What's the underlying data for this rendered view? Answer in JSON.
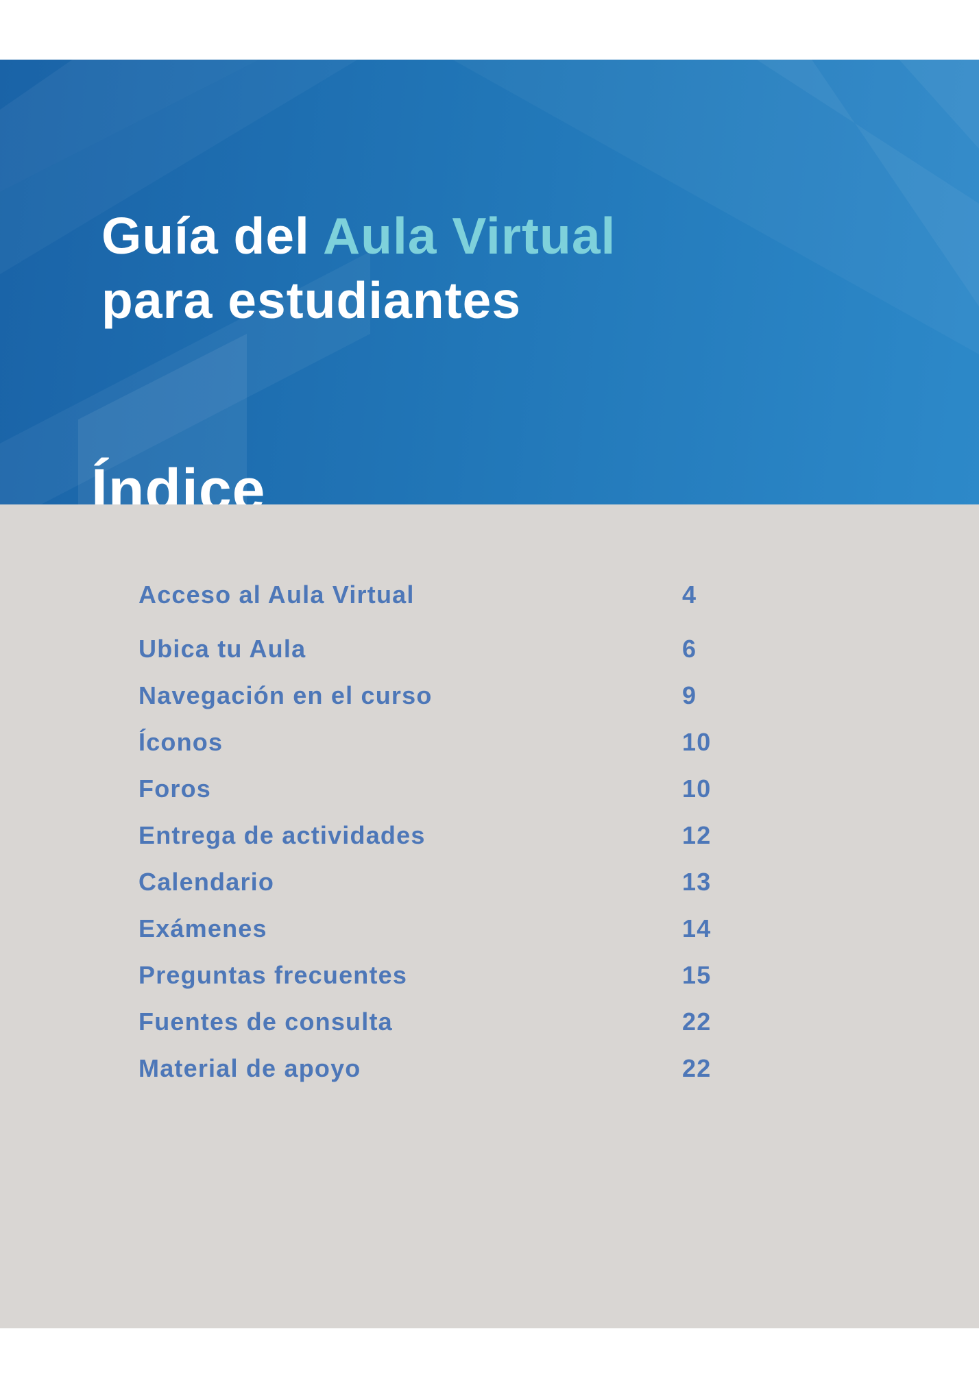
{
  "document": {
    "cover_title": {
      "line1_white": "Guía del",
      "line1_accent": "Aula Virtual",
      "line2": "para estudiantes"
    },
    "section_heading": "Índice"
  },
  "toc": {
    "entries": [
      {
        "label": "Acceso al Aula Virtual",
        "page": "4"
      },
      {
        "label": "Ubica tu Aula",
        "page": "6"
      },
      {
        "label": "Navegación en el curso",
        "page": "9"
      },
      {
        "label": "Íconos",
        "page": "10"
      },
      {
        "label": "Foros",
        "page": "10"
      },
      {
        "label": "Entrega de actividades",
        "page": "12"
      },
      {
        "label": "Calendario",
        "page": "13"
      },
      {
        "label": "Exámenes",
        "page": "14"
      },
      {
        "label": "Preguntas frecuentes",
        "page": "15"
      },
      {
        "label": "Fuentes de consulta",
        "page": "22"
      },
      {
        "label": "Material de apoyo",
        "page": "22"
      }
    ]
  },
  "colors": {
    "header_blue_left": "#1a63a7",
    "header_blue_mid": "#2176b7",
    "header_blue_right": "#2d89c9",
    "accent_cyan": "#7ed1db",
    "body_gray": "#d9d6d3",
    "toc_text_blue": "#4d77b8",
    "page_white": "#ffffff"
  }
}
